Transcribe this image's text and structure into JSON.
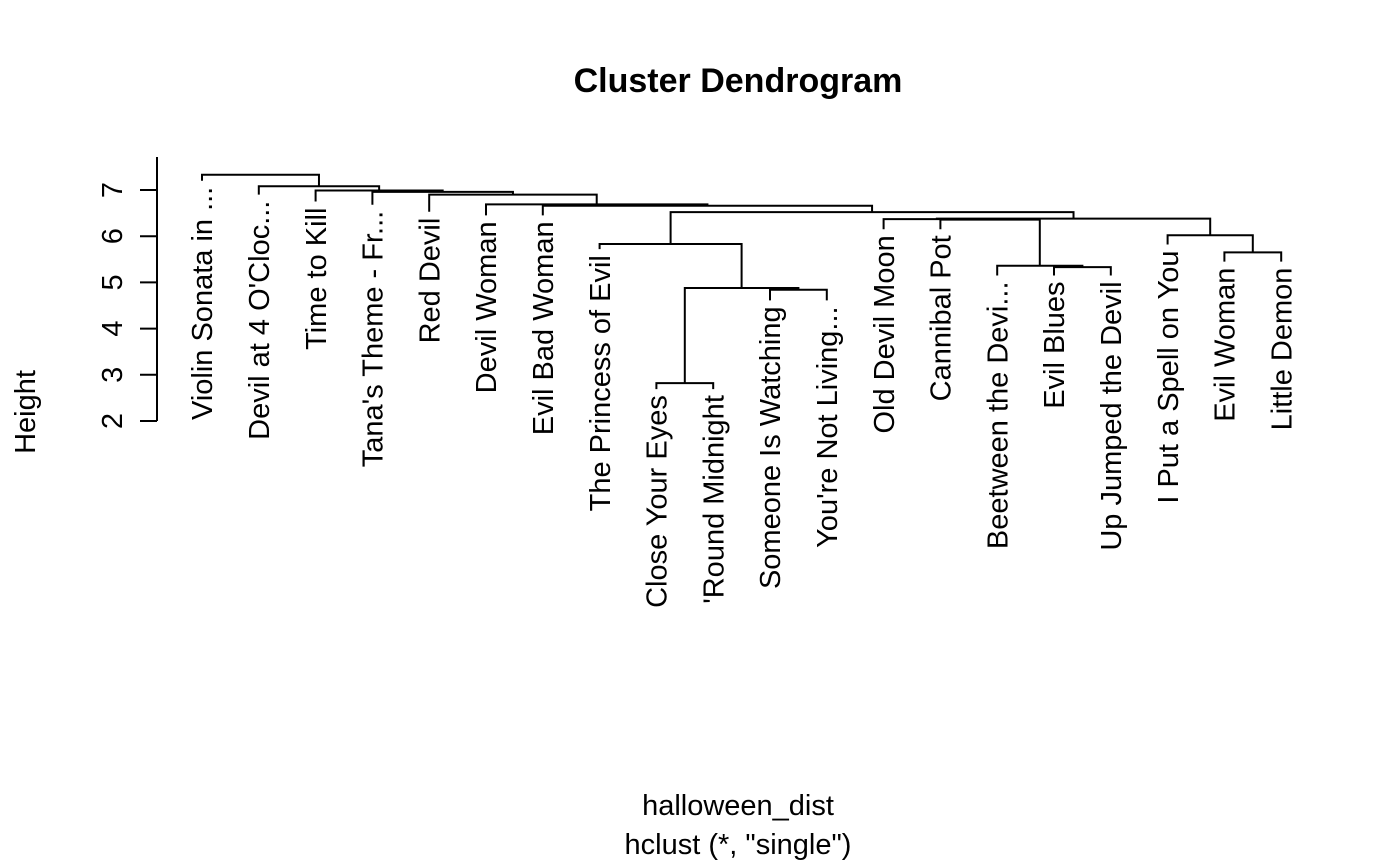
{
  "chart_data": {
    "type": "dendrogram",
    "title": "Cluster Dendrogram",
    "ylabel": "Height",
    "xlabel": "halloween_dist",
    "sublabel": "hclust (*, \"single\")",
    "yticks": [
      "2",
      "3",
      "4",
      "5",
      "6",
      "7"
    ],
    "ylim": [
      2,
      7.3
    ],
    "leaves": [
      "Violin Sonata in ...",
      "Devil at 4 O'Cloc...",
      "Time to Kill",
      "Tana's Theme - Fr...",
      "Red Devil",
      "Devil Woman",
      "Evil Bad Woman",
      "The Princess of Evil",
      "Close Your Eyes",
      "'Round Midnight",
      "Someone Is Watching",
      "You're Not Living...",
      "Old Devil Moon",
      "Cannibal Pot",
      "Beetween the Devi...",
      "Evil Blues",
      "Up Jumped the Devil",
      "I Put a Spell on You",
      "Evil Woman",
      "Little Demon"
    ],
    "leaf_heights": [
      7.2,
      6.9,
      6.75,
      6.68,
      6.53,
      6.45,
      6.45,
      5.72,
      2.69,
      2.69,
      4.61,
      4.61,
      6.15,
      6.15,
      5.15,
      5.15,
      5.15,
      5.82,
      5.45,
      5.45
    ],
    "merges": [
      {
        "a": "L8",
        "b": "L9",
        "h": 2.82
      },
      {
        "a": "L10",
        "b": "L11",
        "h": 4.84
      },
      {
        "a": "M0",
        "b": "M1",
        "h": 4.88
      },
      {
        "a": "L7",
        "b": "M2",
        "h": 5.83
      },
      {
        "a": "L15",
        "b": "L16",
        "h": 5.33
      },
      {
        "a": "L14",
        "b": "M4",
        "h": 5.36
      },
      {
        "a": "L18",
        "b": "L19",
        "h": 5.65
      },
      {
        "a": "L17",
        "b": "M6",
        "h": 6.02
      },
      {
        "a": "L13",
        "b": "M5",
        "h": 6.36
      },
      {
        "a": "L12",
        "b": "M8",
        "h": 6.37
      },
      {
        "a": "M9",
        "b": "M7",
        "h": 6.38
      },
      {
        "a": "M3",
        "b": "M10",
        "h": 6.52
      },
      {
        "a": "L6",
        "b": "M11",
        "h": 6.66
      },
      {
        "a": "L5",
        "b": "M12",
        "h": 6.69
      },
      {
        "a": "L4",
        "b": "M13",
        "h": 6.9
      },
      {
        "a": "L3",
        "b": "M14",
        "h": 6.96
      },
      {
        "a": "L2",
        "b": "M15",
        "h": 6.99
      },
      {
        "a": "L1",
        "b": "M16",
        "h": 7.08
      },
      {
        "a": "L0",
        "b": "M17",
        "h": 7.33
      }
    ]
  }
}
